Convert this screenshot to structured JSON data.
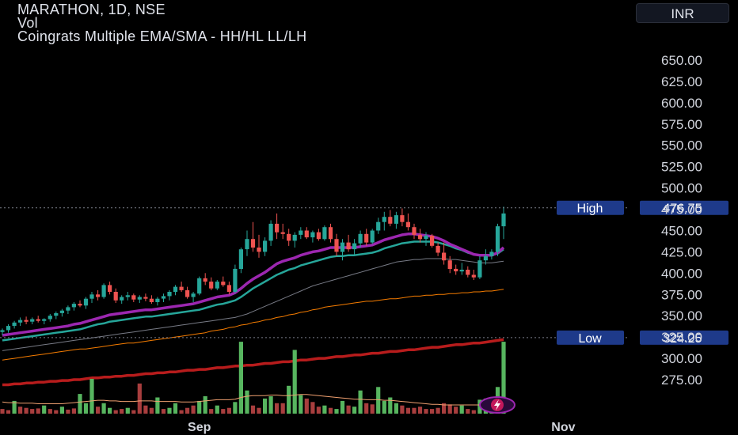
{
  "symbol_line": "MARATHON, 1D, NSE",
  "volume_label": "Vol",
  "indicator_label": "Coingrats Multiple EMA/SMA - HH/HL LL/LH",
  "currency": "INR",
  "colors": {
    "up": "#26a69a",
    "down": "#ef5350",
    "up_bright": "#66bb6a",
    "ema_fast": "#9c27b0",
    "ema_mid": "#26a69a",
    "sma_grey": "#787b86",
    "sma_orange": "#f57c00",
    "sma_red": "#b71c1c",
    "label_bg": "#1e3a8a"
  },
  "markers": [
    {
      "label": "High",
      "value_text": "476.75",
      "value": 476.75
    },
    {
      "label": "Low",
      "value_text": "324.25",
      "value": 324.25
    }
  ],
  "chart_data": {
    "type": "candlestick",
    "y_ticks": [
      "650.00",
      "625.00",
      "600.00",
      "575.00",
      "550.00",
      "525.00",
      "500.00",
      "475.00",
      "450.00",
      "425.00",
      "400.00",
      "375.00",
      "350.00",
      "325.00",
      "300.00",
      "275.00"
    ],
    "y_tick_values": [
      650,
      625,
      600,
      575,
      550,
      525,
      500,
      475,
      450,
      425,
      400,
      375,
      350,
      325,
      300,
      275
    ],
    "x_ticks": [
      {
        "label": "Sep",
        "index": 33
      },
      {
        "label": "Nov",
        "index": 94
      }
    ],
    "ylim": [
      262,
      676
    ],
    "candles": [
      [
        331,
        335,
        327,
        333
      ],
      [
        333,
        340,
        330,
        338
      ],
      [
        338,
        344,
        335,
        342
      ],
      [
        342,
        348,
        338,
        345
      ],
      [
        345,
        349,
        340,
        343
      ],
      [
        343,
        348,
        340,
        346
      ],
      [
        346,
        350,
        342,
        344
      ],
      [
        344,
        347,
        340,
        346
      ],
      [
        346,
        352,
        343,
        350
      ],
      [
        350,
        355,
        346,
        353
      ],
      [
        353,
        358,
        349,
        356
      ],
      [
        356,
        362,
        352,
        360
      ],
      [
        360,
        366,
        356,
        364
      ],
      [
        364,
        368,
        360,
        362
      ],
      [
        362,
        372,
        358,
        370
      ],
      [
        370,
        378,
        365,
        375
      ],
      [
        375,
        380,
        368,
        372
      ],
      [
        372,
        388,
        370,
        386
      ],
      [
        386,
        390,
        375,
        378
      ],
      [
        378,
        382,
        365,
        368
      ],
      [
        368,
        374,
        364,
        372
      ],
      [
        372,
        378,
        368,
        374
      ],
      [
        374,
        376,
        366,
        369
      ],
      [
        369,
        374,
        365,
        372
      ],
      [
        372,
        376,
        367,
        370
      ],
      [
        370,
        374,
        364,
        366
      ],
      [
        366,
        372,
        362,
        370
      ],
      [
        370,
        376,
        366,
        373
      ],
      [
        373,
        380,
        368,
        378
      ],
      [
        378,
        386,
        374,
        384
      ],
      [
        384,
        390,
        378,
        380
      ],
      [
        380,
        384,
        370,
        372
      ],
      [
        372,
        378,
        366,
        376
      ],
      [
        376,
        396,
        374,
        394
      ],
      [
        394,
        400,
        386,
        390
      ],
      [
        390,
        395,
        380,
        382
      ],
      [
        382,
        392,
        380,
        390
      ],
      [
        390,
        396,
        384,
        386
      ],
      [
        386,
        390,
        375,
        378
      ],
      [
        378,
        410,
        376,
        405
      ],
      [
        405,
        430,
        400,
        428
      ],
      [
        428,
        450,
        420,
        440
      ],
      [
        440,
        460,
        425,
        430
      ],
      [
        430,
        445,
        418,
        425
      ],
      [
        425,
        442,
        420,
        438
      ],
      [
        438,
        462,
        432,
        458
      ],
      [
        458,
        470,
        440,
        448
      ],
      [
        448,
        458,
        440,
        446
      ],
      [
        446,
        452,
        432,
        438
      ],
      [
        438,
        448,
        430,
        445
      ],
      [
        445,
        454,
        440,
        450
      ],
      [
        450,
        454,
        440,
        442
      ],
      [
        442,
        450,
        436,
        448
      ],
      [
        448,
        452,
        438,
        440
      ],
      [
        440,
        456,
        438,
        454
      ],
      [
        454,
        458,
        436,
        440
      ],
      [
        440,
        446,
        420,
        425
      ],
      [
        425,
        440,
        415,
        436
      ],
      [
        436,
        445,
        425,
        428
      ],
      [
        428,
        440,
        420,
        435
      ],
      [
        435,
        450,
        430,
        446
      ],
      [
        446,
        452,
        432,
        436
      ],
      [
        436,
        452,
        434,
        450
      ],
      [
        450,
        465,
        446,
        460
      ],
      [
        460,
        472,
        450,
        466
      ],
      [
        466,
        474,
        455,
        458
      ],
      [
        458,
        472,
        452,
        468
      ],
      [
        468,
        476,
        455,
        460
      ],
      [
        460,
        470,
        450,
        454
      ],
      [
        454,
        458,
        440,
        445
      ],
      [
        445,
        452,
        436,
        440
      ],
      [
        440,
        448,
        432,
        444
      ],
      [
        444,
        446,
        430,
        432
      ],
      [
        432,
        436,
        420,
        424
      ],
      [
        424,
        436,
        410,
        415
      ],
      [
        415,
        420,
        400,
        405
      ],
      [
        405,
        410,
        398,
        402
      ],
      [
        402,
        412,
        398,
        404
      ],
      [
        404,
        408,
        395,
        398
      ],
      [
        398,
        404,
        392,
        395
      ],
      [
        395,
        420,
        393,
        415
      ],
      [
        415,
        428,
        410,
        420
      ],
      [
        420,
        428,
        416,
        425
      ],
      [
        425,
        458,
        420,
        455
      ],
      [
        455,
        478,
        440,
        470
      ]
    ],
    "volume_scale_max": 176,
    "volume_up": [
      false,
      false,
      true,
      false,
      false,
      false,
      false,
      true,
      false,
      false,
      true,
      false,
      false,
      true,
      true,
      true,
      false,
      true,
      true,
      false,
      false,
      true,
      false,
      false,
      false,
      false,
      true,
      false,
      true,
      true,
      false,
      false,
      false,
      true,
      true,
      false,
      true,
      false,
      false,
      true,
      true,
      true,
      false,
      false,
      true,
      true,
      false,
      false,
      true,
      true,
      true,
      false,
      false,
      false,
      true,
      false,
      true,
      true,
      false,
      true,
      true,
      false,
      false,
      true,
      true,
      true,
      true,
      false,
      false,
      false,
      false,
      false,
      false,
      false,
      false,
      false,
      false,
      true,
      false,
      false,
      true,
      true,
      true,
      true,
      true
    ],
    "volume": [
      8,
      6,
      22,
      12,
      10,
      8,
      9,
      14,
      8,
      6,
      12,
      7,
      9,
      34,
      18,
      60,
      12,
      18,
      10,
      6,
      8,
      10,
      6,
      52,
      14,
      10,
      28,
      8,
      10,
      18,
      6,
      10,
      14,
      22,
      30,
      8,
      14,
      8,
      10,
      20,
      124,
      40,
      14,
      10,
      26,
      30,
      18,
      18,
      48,
      110,
      32,
      26,
      20,
      12,
      14,
      10,
      8,
      22,
      14,
      12,
      40,
      18,
      16,
      46,
      22,
      28,
      18,
      14,
      10,
      10,
      12,
      8,
      8,
      10,
      18,
      16,
      12,
      14,
      8,
      6,
      24,
      26,
      18,
      46,
      124
    ],
    "volume_sma": [
      20,
      19,
      19,
      18,
      18,
      18,
      17,
      17,
      17,
      17,
      17,
      18,
      19,
      20,
      21,
      22,
      23,
      23,
      22,
      22,
      21,
      21,
      21,
      22,
      22,
      22,
      21,
      21,
      21,
      21,
      20,
      20,
      20,
      21,
      22,
      23,
      24,
      24,
      24,
      25,
      28,
      30,
      31,
      31,
      31,
      32,
      32,
      31,
      31,
      32,
      33,
      33,
      32,
      31,
      30,
      29,
      28,
      27,
      26,
      25,
      25,
      24,
      24,
      24,
      23,
      23,
      22,
      21,
      20,
      19,
      18,
      17,
      16,
      16,
      15,
      15,
      15,
      15,
      15,
      15,
      15,
      16,
      16,
      17,
      18
    ],
    "ema_fast": [
      327,
      328,
      329,
      330,
      331,
      332,
      333,
      334,
      335,
      336,
      337,
      338,
      340,
      341,
      343,
      345,
      347,
      349,
      351,
      352,
      353,
      354,
      355,
      356,
      357,
      357,
      358,
      359,
      360,
      361,
      362,
      363,
      364,
      366,
      368,
      370,
      372,
      373,
      374,
      377,
      382,
      388,
      393,
      397,
      401,
      406,
      411,
      414,
      416,
      418,
      421,
      423,
      425,
      426,
      428,
      430,
      430,
      430,
      430,
      430,
      431,
      432,
      433,
      436,
      439,
      441,
      443,
      445,
      446,
      446,
      445,
      444,
      443,
      441,
      438,
      434,
      431,
      428,
      425,
      422,
      421,
      421,
      421,
      424,
      430
    ],
    "ema_mid": [
      321,
      322,
      323,
      324,
      325,
      326,
      327,
      328,
      329,
      330,
      331,
      332,
      333,
      334,
      336,
      338,
      340,
      341,
      343,
      344,
      345,
      346,
      347,
      348,
      349,
      349,
      350,
      351,
      352,
      353,
      354,
      355,
      356,
      357,
      359,
      361,
      363,
      364,
      366,
      368,
      372,
      377,
      382,
      386,
      390,
      394,
      398,
      401,
      404,
      406,
      409,
      411,
      413,
      415,
      417,
      419,
      420,
      420,
      421,
      421,
      422,
      423,
      424,
      426,
      429,
      431,
      433,
      435,
      436,
      437,
      437,
      437,
      437,
      436,
      434,
      432,
      429,
      427,
      424,
      422,
      421,
      421,
      421,
      423,
      428
    ],
    "sma_grey": [
      309,
      310,
      311,
      312,
      313,
      314,
      315,
      316,
      317,
      318,
      319,
      320,
      321,
      322,
      323,
      324,
      325,
      326,
      327,
      328,
      329,
      330,
      331,
      332,
      333,
      334,
      335,
      336,
      337,
      338,
      339,
      340,
      341,
      342,
      343,
      344,
      345,
      346,
      347,
      348,
      350,
      352,
      355,
      358,
      361,
      364,
      367,
      370,
      373,
      376,
      379,
      382,
      385,
      387,
      389,
      391,
      393,
      395,
      397,
      399,
      401,
      403,
      405,
      407,
      409,
      411,
      413,
      414,
      415,
      416,
      416,
      417,
      417,
      417,
      417,
      416,
      416,
      415,
      414,
      413,
      412,
      412,
      412,
      413,
      414
    ],
    "sma_orange": [
      298,
      299,
      300,
      301,
      302,
      303,
      304,
      305,
      306,
      307,
      308,
      309,
      310,
      311,
      311,
      312,
      313,
      314,
      315,
      316,
      317,
      318,
      318,
      319,
      320,
      321,
      322,
      323,
      324,
      325,
      326,
      327,
      328,
      329,
      330,
      332,
      333,
      334,
      336,
      337,
      339,
      340,
      342,
      343,
      345,
      346,
      348,
      349,
      351,
      352,
      354,
      355,
      357,
      358,
      360,
      361,
      362,
      363,
      364,
      365,
      366,
      367,
      367,
      368,
      369,
      370,
      370,
      371,
      372,
      373,
      373,
      374,
      374,
      375,
      375,
      376,
      376,
      377,
      377,
      378,
      378,
      379,
      379,
      380,
      381
    ],
    "sma_red": [
      269,
      269,
      270,
      270,
      271,
      271,
      272,
      272,
      273,
      273,
      274,
      274,
      275,
      275,
      276,
      277,
      277,
      278,
      278,
      279,
      279,
      280,
      280,
      281,
      282,
      282,
      283,
      283,
      284,
      284,
      285,
      286,
      286,
      287,
      287,
      288,
      289,
      289,
      290,
      291,
      291,
      292,
      292,
      293,
      294,
      294,
      295,
      296,
      296,
      297,
      298,
      298,
      299,
      300,
      300,
      301,
      302,
      302,
      303,
      304,
      304,
      305,
      306,
      306,
      307,
      308,
      308,
      309,
      310,
      310,
      311,
      312,
      313,
      313,
      314,
      315,
      316,
      316,
      317,
      318,
      318,
      319,
      320,
      321,
      322
    ]
  }
}
